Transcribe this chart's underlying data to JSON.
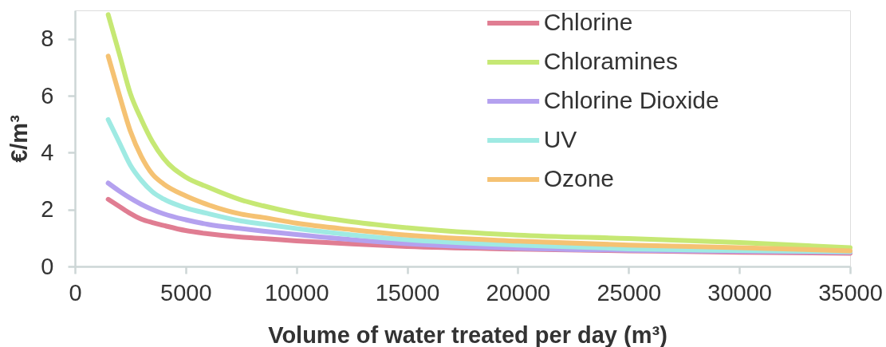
{
  "chart_data": {
    "type": "line",
    "xlabel": "Volume of water treated per day (m³)",
    "ylabel": "€/m³",
    "x": [
      1500,
      2000,
      2500,
      3000,
      3500,
      4000,
      5000,
      6000,
      7500,
      8500,
      10000,
      12500,
      15000,
      20000,
      25000,
      30000,
      35000
    ],
    "series": [
      {
        "name": "Chlorine",
        "color": "#e07d92",
        "values": [
          2.36,
          2.11,
          1.86,
          1.66,
          1.54,
          1.44,
          1.26,
          1.15,
          1.03,
          0.98,
          0.9,
          0.79,
          0.7,
          0.61,
          0.55,
          0.5,
          0.46
        ]
      },
      {
        "name": "Chloramines",
        "color": "#c6e874",
        "values": [
          8.85,
          7.48,
          6.08,
          5.16,
          4.38,
          3.8,
          3.14,
          2.79,
          2.34,
          2.13,
          1.87,
          1.57,
          1.36,
          1.1,
          0.98,
          0.84,
          0.66
        ]
      },
      {
        "name": "Chlorine Dioxide",
        "color": "#b4a1ef",
        "values": [
          2.93,
          2.65,
          2.4,
          2.18,
          2.0,
          1.85,
          1.64,
          1.48,
          1.33,
          1.24,
          1.12,
          0.94,
          0.8,
          0.64,
          0.57,
          0.53,
          0.5
        ]
      },
      {
        "name": "UV",
        "color": "#9feae3",
        "values": [
          5.16,
          4.36,
          3.56,
          3.02,
          2.62,
          2.37,
          2.06,
          1.86,
          1.6,
          1.49,
          1.33,
          1.11,
          0.94,
          0.75,
          0.62,
          0.56,
          0.52
        ]
      },
      {
        "name": "Ozone",
        "color": "#f5c273",
        "values": [
          7.39,
          6.04,
          4.76,
          3.86,
          3.24,
          2.9,
          2.48,
          2.17,
          1.84,
          1.72,
          1.52,
          1.29,
          1.1,
          0.89,
          0.75,
          0.66,
          0.55
        ]
      }
    ],
    "xlim": [
      0,
      35000
    ],
    "xticks": [
      0,
      5000,
      10000,
      15000,
      20000,
      25000,
      30000,
      35000
    ],
    "ylim": [
      0,
      9
    ],
    "yticks": [
      0,
      2,
      4,
      6,
      8
    ],
    "grid": false,
    "legend": "top right",
    "line_style": "solid"
  }
}
